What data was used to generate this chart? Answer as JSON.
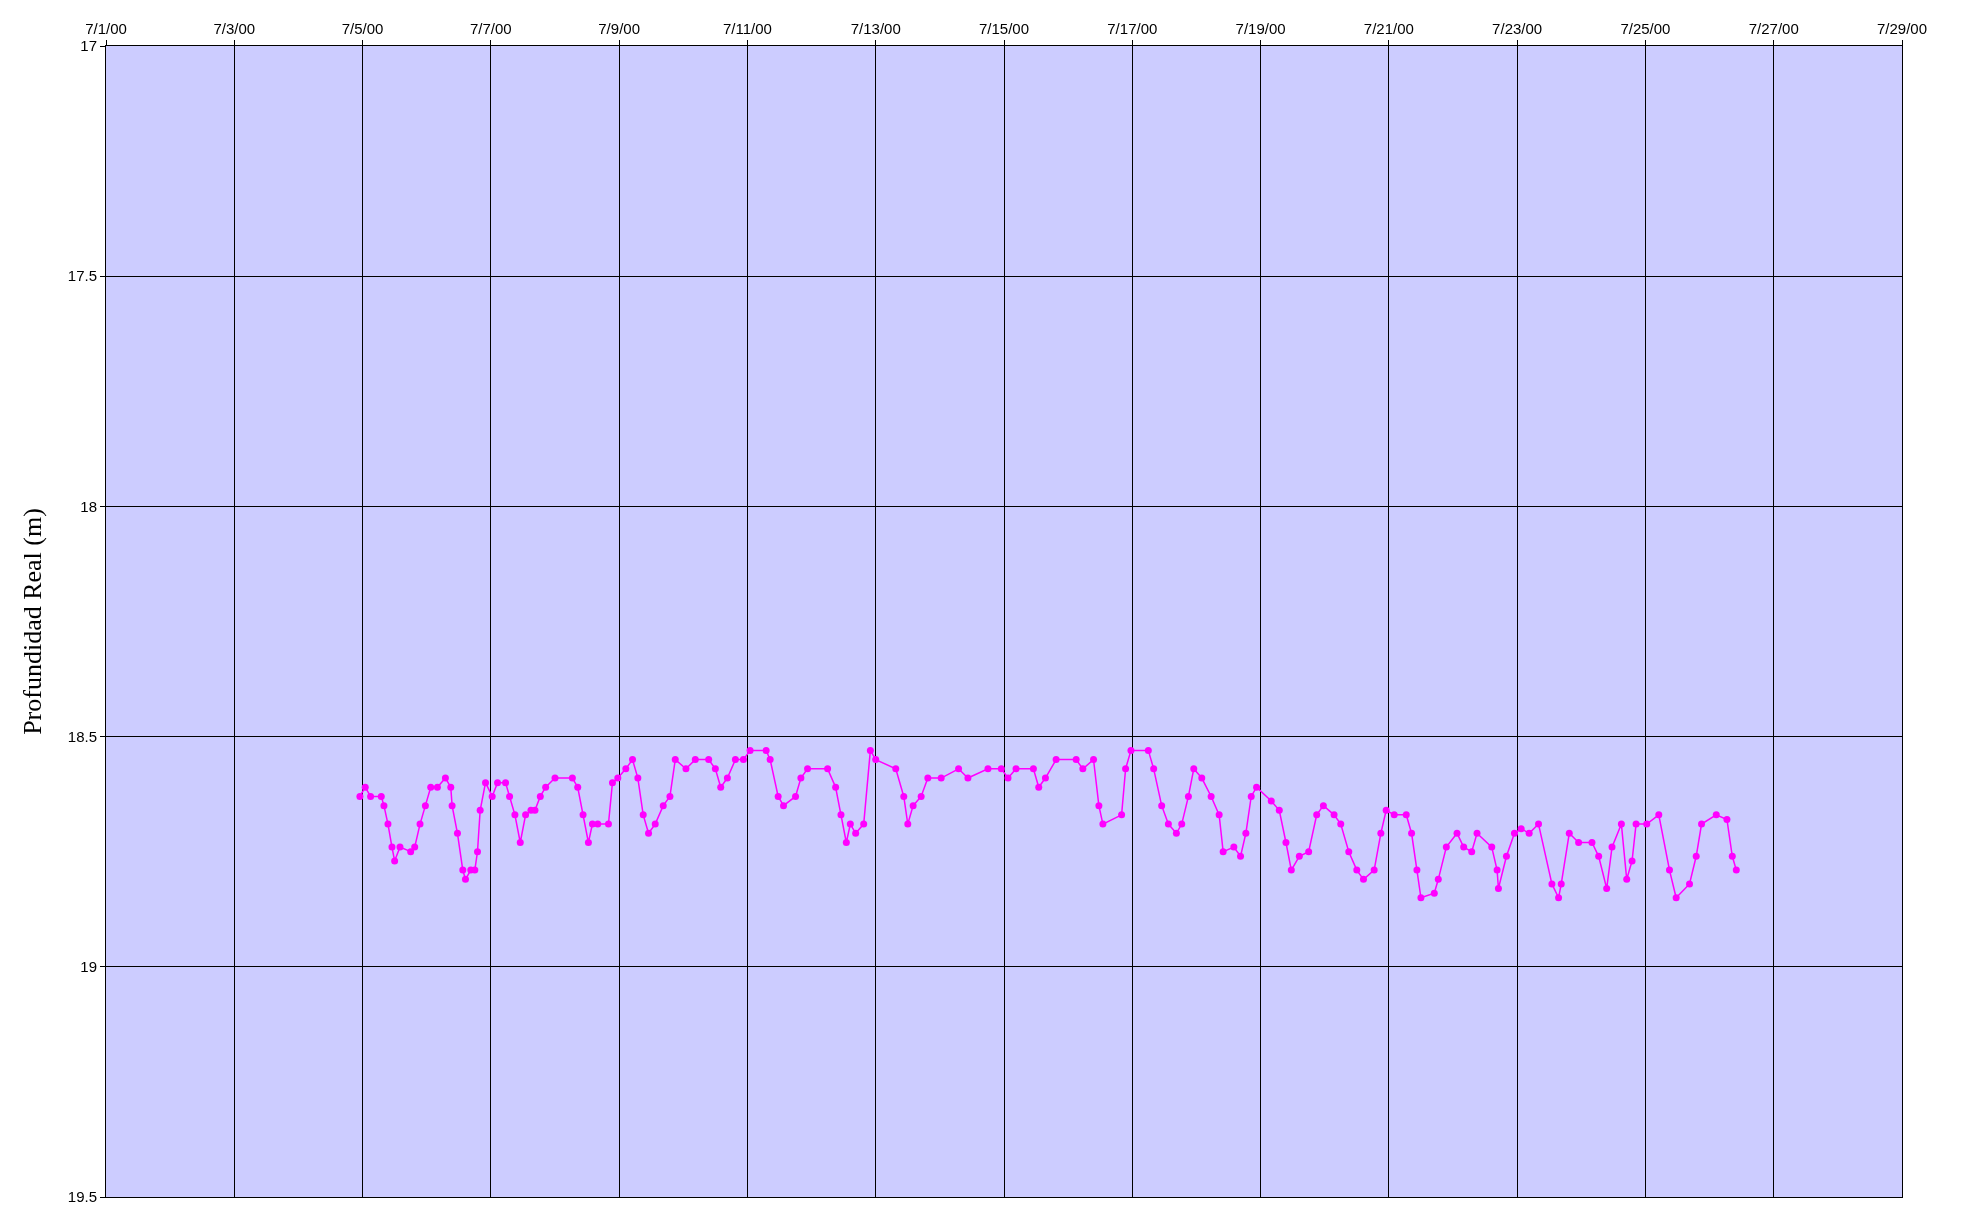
{
  "chart_data": {
    "type": "line",
    "ylabel": "Profundidad Real (m)",
    "x": [
      "2000-07-04T23:00",
      "2000-07-05T01:00",
      "2000-07-05T03:00",
      "2000-07-05T07:00",
      "2000-07-05T08:00",
      "2000-07-05T09:30",
      "2000-07-05T11:00",
      "2000-07-05T12:00",
      "2000-07-05T14:00",
      "2000-07-05T18:00",
      "2000-07-05T19:30",
      "2000-07-05T21:30",
      "2000-07-05T23:30",
      "2000-07-06T01:30",
      "2000-07-06T04:00",
      "2000-07-06T07:00",
      "2000-07-06T09:00",
      "2000-07-06T09:30",
      "2000-07-06T11:30",
      "2000-07-06T13:30",
      "2000-07-06T14:30",
      "2000-07-06T16:30",
      "2000-07-06T18:00",
      "2000-07-06T19:00",
      "2000-07-06T20:00",
      "2000-07-06T22:00",
      "2000-07-07T00:30",
      "2000-07-07T02:30",
      "2000-07-07T05:30",
      "2000-07-07T07:00",
      "2000-07-07T09:00",
      "2000-07-07T11:00",
      "2000-07-07T13:00",
      "2000-07-07T15:00",
      "2000-07-07T16:30",
      "2000-07-07T18:30",
      "2000-07-07T20:30",
      "2000-07-08T00:00",
      "2000-07-08T06:30",
      "2000-07-08T08:30",
      "2000-07-08T10:30",
      "2000-07-08T12:30",
      "2000-07-08T14:00",
      "2000-07-08T16:00",
      "2000-07-08T20:00",
      "2000-07-08T21:30",
      "2000-07-08T23:30",
      "2000-07-09T02:30",
      "2000-07-09T05:00",
      "2000-07-09T07:00",
      "2000-07-09T09:00",
      "2000-07-09T11:00",
      "2000-07-09T13:30",
      "2000-07-09T16:30",
      "2000-07-09T19:00",
      "2000-07-09T21:00",
      "2000-07-10T01:00",
      "2000-07-10T04:30",
      "2000-07-10T09:30",
      "2000-07-10T12:00",
      "2000-07-10T14:00",
      "2000-07-10T16:30",
      "2000-07-10T19:30",
      "2000-07-10T22:30",
      "2000-07-11T01:00",
      "2000-07-11T07:00",
      "2000-07-11T08:30",
      "2000-07-11T11:30",
      "2000-07-11T13:30",
      "2000-07-11T18:00",
      "2000-07-11T20:00",
      "2000-07-11T22:30",
      "2000-07-12T06:00",
      "2000-07-12T09:00",
      "2000-07-12T11:00",
      "2000-07-12T13:00",
      "2000-07-12T14:30",
      "2000-07-12T16:30",
      "2000-07-12T19:30",
      "2000-07-12T22:00",
      "2000-07-13T00:00",
      "2000-07-13T07:30",
      "2000-07-13T10:30",
      "2000-07-13T12:00",
      "2000-07-13T14:00",
      "2000-07-13T17:00",
      "2000-07-13T19:30",
      "2000-07-14T00:30",
      "2000-07-14T07:00",
      "2000-07-14T10:30",
      "2000-07-14T18:00",
      "2000-07-14T23:00",
      "2000-07-15T01:30",
      "2000-07-15T04:30",
      "2000-07-15T11:00",
      "2000-07-15T13:00",
      "2000-07-15T15:30",
      "2000-07-15T19:30",
      "2000-07-16T03:00",
      "2000-07-16T05:30",
      "2000-07-16T09:30",
      "2000-07-16T11:30",
      "2000-07-16T13:00",
      "2000-07-16T20:00",
      "2000-07-16T21:30",
      "2000-07-16T23:30",
      "2000-07-17T06:00",
      "2000-07-17T08:00",
      "2000-07-17T11:00",
      "2000-07-17T13:30",
      "2000-07-17T16:30",
      "2000-07-17T18:30",
      "2000-07-17T21:00",
      "2000-07-17T23:00",
      "2000-07-18T02:00",
      "2000-07-18T05:30",
      "2000-07-18T08:30",
      "2000-07-18T10:00",
      "2000-07-18T14:00",
      "2000-07-18T16:30",
      "2000-07-18T18:30",
      "2000-07-18T20:30",
      "2000-07-18T22:30",
      "2000-07-19T04:00",
      "2000-07-19T07:00",
      "2000-07-19T09:30",
      "2000-07-19T11:30",
      "2000-07-19T14:30",
      "2000-07-19T18:00",
      "2000-07-19T21:00",
      "2000-07-19T23:30",
      "2000-07-20T03:30",
      "2000-07-20T06:00",
      "2000-07-20T09:00",
      "2000-07-20T12:00",
      "2000-07-20T14:30",
      "2000-07-20T18:30",
      "2000-07-20T21:00",
      "2000-07-20T23:00",
      "2000-07-21T02:00",
      "2000-07-21T06:30",
      "2000-07-21T08:30",
      "2000-07-21T10:30",
      "2000-07-21T12:00",
      "2000-07-21T17:00",
      "2000-07-21T18:30",
      "2000-07-21T21:30",
      "2000-07-22T01:30",
      "2000-07-22T04:00",
      "2000-07-22T07:00",
      "2000-07-22T09:00",
      "2000-07-22T14:30",
      "2000-07-22T16:30",
      "2000-07-22T17:00",
      "2000-07-22T20:00",
      "2000-07-22T23:00",
      "2000-07-23T01:30",
      "2000-07-23T04:30",
      "2000-07-23T08:00",
      "2000-07-23T13:00",
      "2000-07-23T15:30",
      "2000-07-23T16:30",
      "2000-07-23T19:30",
      "2000-07-23T23:00",
      "2000-07-24T04:00",
      "2000-07-24T06:30",
      "2000-07-24T09:30",
      "2000-07-24T11:30",
      "2000-07-24T15:00",
      "2000-07-24T17:00",
      "2000-07-24T19:00",
      "2000-07-24T20:30",
      "2000-07-25T00:30",
      "2000-07-25T05:00",
      "2000-07-25T09:00",
      "2000-07-25T11:30",
      "2000-07-25T16:30",
      "2000-07-25T19:00",
      "2000-07-25T21:00",
      "2000-07-26T02:30",
      "2000-07-26T06:30",
      "2000-07-26T08:30",
      "2000-07-26T10:00"
    ],
    "series": [
      {
        "color": "#ff00ff",
        "values": [
          18.63,
          18.61,
          18.63,
          18.63,
          18.65,
          18.69,
          18.74,
          18.77,
          18.74,
          18.75,
          18.74,
          18.69,
          18.65,
          18.61,
          18.61,
          18.59,
          18.61,
          18.65,
          18.71,
          18.79,
          18.81,
          18.79,
          18.79,
          18.75,
          18.66,
          18.6,
          18.63,
          18.6,
          18.6,
          18.63,
          18.67,
          18.73,
          18.67,
          18.66,
          18.66,
          18.63,
          18.61,
          18.59,
          18.59,
          18.61,
          18.67,
          18.73,
          18.69,
          18.69,
          18.69,
          18.6,
          18.59,
          18.57,
          18.55,
          18.59,
          18.67,
          18.71,
          18.69,
          18.65,
          18.63,
          18.55,
          18.57,
          18.55,
          18.55,
          18.57,
          18.61,
          18.59,
          18.55,
          18.55,
          18.53,
          18.53,
          18.55,
          18.63,
          18.65,
          18.63,
          18.59,
          18.57,
          18.57,
          18.61,
          18.67,
          18.73,
          18.69,
          18.71,
          18.69,
          18.53,
          18.55,
          18.57,
          18.63,
          18.69,
          18.65,
          18.63,
          18.59,
          18.59,
          18.57,
          18.59,
          18.57,
          18.57,
          18.59,
          18.57,
          18.57,
          18.61,
          18.59,
          18.55,
          18.55,
          18.57,
          18.55,
          18.65,
          18.69,
          18.67,
          18.57,
          18.53,
          18.53,
          18.57,
          18.65,
          18.69,
          18.71,
          18.69,
          18.63,
          18.57,
          18.59,
          18.63,
          18.67,
          18.75,
          18.74,
          18.76,
          18.71,
          18.63,
          18.61,
          18.64,
          18.66,
          18.73,
          18.79,
          18.76,
          18.75,
          18.67,
          18.65,
          18.67,
          18.69,
          18.75,
          18.79,
          18.81,
          18.79,
          18.71,
          18.66,
          18.67,
          18.67,
          18.71,
          18.79,
          18.85,
          18.84,
          18.81,
          18.74,
          18.71,
          18.74,
          18.75,
          18.71,
          18.74,
          18.79,
          18.83,
          18.76,
          18.71,
          18.7,
          18.71,
          18.69,
          18.82,
          18.85,
          18.82,
          18.71,
          18.73,
          18.73,
          18.76,
          18.83,
          18.74,
          18.69,
          18.81,
          18.77,
          18.69,
          18.69,
          18.67,
          18.79,
          18.85,
          18.82,
          18.76,
          18.69,
          18.67,
          18.68,
          18.76,
          18.79
        ]
      }
    ],
    "marker": "circle",
    "line_style": "solid",
    "grid": true,
    "xlim": [
      "2000-07-01",
      "2000-07-29"
    ],
    "xticks": [
      {
        "value": "2000-07-01",
        "label": "7/1/00"
      },
      {
        "value": "2000-07-03",
        "label": "7/3/00"
      },
      {
        "value": "2000-07-05",
        "label": "7/5/00"
      },
      {
        "value": "2000-07-07",
        "label": "7/7/00"
      },
      {
        "value": "2000-07-09",
        "label": "7/9/00"
      },
      {
        "value": "2000-07-11",
        "label": "7/11/00"
      },
      {
        "value": "2000-07-13",
        "label": "7/13/00"
      },
      {
        "value": "2000-07-15",
        "label": "7/15/00"
      },
      {
        "value": "2000-07-17",
        "label": "7/17/00"
      },
      {
        "value": "2000-07-19",
        "label": "7/19/00"
      },
      {
        "value": "2000-07-21",
        "label": "7/21/00"
      },
      {
        "value": "2000-07-23",
        "label": "7/23/00"
      },
      {
        "value": "2000-07-25",
        "label": "7/25/00"
      },
      {
        "value": "2000-07-27",
        "label": "7/27/00"
      },
      {
        "value": "2000-07-29",
        "label": "7/29/00"
      }
    ],
    "ylim": [
      19.5,
      17
    ],
    "yticks": [
      17,
      17.5,
      18,
      18.5,
      19,
      19.5
    ]
  }
}
